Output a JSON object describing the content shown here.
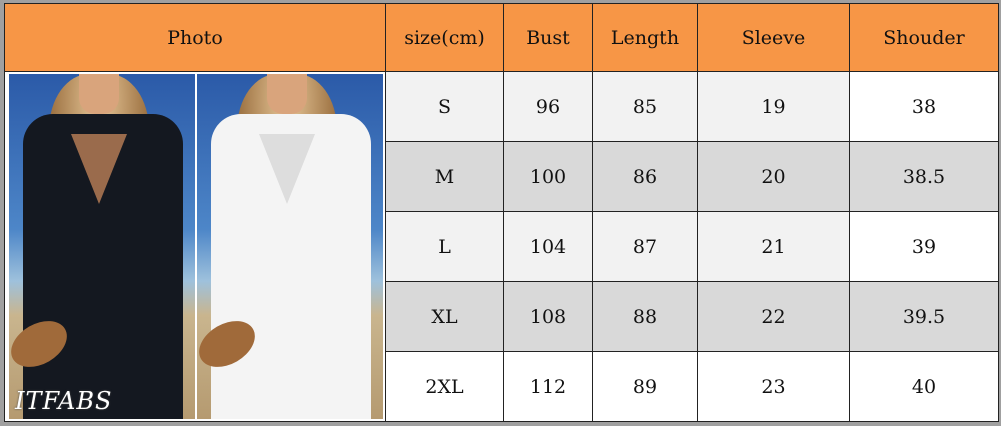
{
  "headers": [
    "Photo",
    "size(cm)",
    "Bust",
    "Length",
    "Sleeve",
    "Shouder"
  ],
  "rows": [
    [
      "S",
      "96",
      "85",
      "19",
      "38"
    ],
    [
      "M",
      "100",
      "86",
      "20",
      "38.5"
    ],
    [
      "L",
      "104",
      "87",
      "21",
      "39"
    ],
    [
      "XL",
      "108",
      "88",
      "22",
      "39.5"
    ],
    [
      "2XL",
      "112",
      "89",
      "23",
      "40"
    ]
  ],
  "photo": {
    "watermark": "ITFABS",
    "description_colors": [
      "black",
      "white"
    ]
  },
  "colors": {
    "header": "#f79646",
    "row_light": "#f2f2f2",
    "row_dark": "#d9d9d9"
  }
}
